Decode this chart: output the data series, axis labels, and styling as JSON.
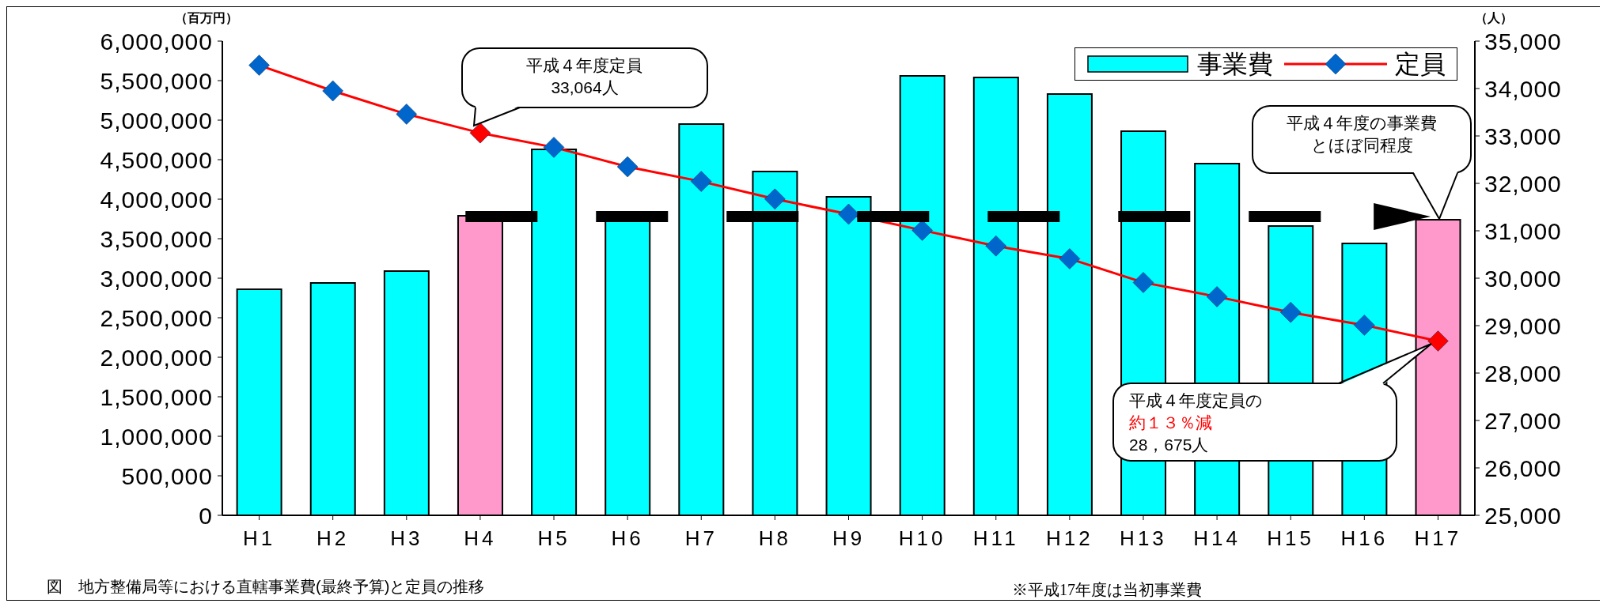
{
  "chart_data": {
    "type": "bar",
    "title": "図　地方整備局等における直轄事業費(最終予算)と定員の推移",
    "ylabel": "（百万円）",
    "y2label": "（人）",
    "categories": [
      "H1",
      "H2",
      "H3",
      "H4",
      "H5",
      "H6",
      "H7",
      "H8",
      "H9",
      "H10",
      "H11",
      "H12",
      "H13",
      "H14",
      "H15",
      "H16",
      "H17"
    ],
    "series": [
      {
        "name": "事業費",
        "color": "#00ffff",
        "colors": [
          "#00ffff",
          "#00ffff",
          "#00ffff",
          "#ff99cc",
          "#00ffff",
          "#00ffff",
          "#00ffff",
          "#00ffff",
          "#00ffff",
          "#00ffff",
          "#00ffff",
          "#00ffff",
          "#00ffff",
          "#00ffff",
          "#00ffff",
          "#00ffff",
          "#ff99cc"
        ],
        "values": [
          2860000,
          2940000,
          3090000,
          3790000,
          4630000,
          3750000,
          4950000,
          4350000,
          4030000,
          5560000,
          5540000,
          5330000,
          4860000,
          4450000,
          3660000,
          3440000,
          3740000
        ]
      },
      {
        "name": "定員",
        "type": "line",
        "axis": "y2",
        "color": "#ff0000",
        "colors": [
          "#0066cc",
          "#0066cc",
          "#0066cc",
          "#ff0000",
          "#0066cc",
          "#0066cc",
          "#0066cc",
          "#0066cc",
          "#0066cc",
          "#0066cc",
          "#0066cc",
          "#0066cc",
          "#0066cc",
          "#0066cc",
          "#0066cc",
          "#0066cc",
          "#ff0000"
        ],
        "values": [
          34490,
          33950,
          33460,
          33064,
          32760,
          32350,
          32040,
          31670,
          31350,
          31010,
          30680,
          30410,
          29910,
          29610,
          29280,
          29010,
          28675
        ]
      }
    ],
    "ylim": [
      0,
      6000000
    ],
    "yticks": [
      {
        "value": 0,
        "label": "0"
      },
      {
        "value": 500000,
        "label": "500,000"
      },
      {
        "value": 1000000,
        "label": "1,000,000"
      },
      {
        "value": 1500000,
        "label": "1,500,000"
      },
      {
        "value": 2000000,
        "label": "2,000,000"
      },
      {
        "value": 2500000,
        "label": "2,500,000"
      },
      {
        "value": 3000000,
        "label": "3,000,000"
      },
      {
        "value": 3500000,
        "label": "3,500,000"
      },
      {
        "value": 4000000,
        "label": "4,000,000"
      },
      {
        "value": 4500000,
        "label": "4,500,000"
      },
      {
        "value": 5000000,
        "label": "5,000,000"
      },
      {
        "value": 5500000,
        "label": "5,500,000"
      },
      {
        "value": 6000000,
        "label": "6,000,000"
      }
    ],
    "y2lim": [
      25000,
      35000
    ],
    "y2ticks": [
      {
        "value": 25000,
        "label": "25,000"
      },
      {
        "value": 26000,
        "label": "26,000"
      },
      {
        "value": 27000,
        "label": "27,000"
      },
      {
        "value": 28000,
        "label": "28,000"
      },
      {
        "value": 29000,
        "label": "29,000"
      },
      {
        "value": 30000,
        "label": "30,000"
      },
      {
        "value": 31000,
        "label": "31,000"
      },
      {
        "value": 32000,
        "label": "32,000"
      },
      {
        "value": 33000,
        "label": "33,000"
      },
      {
        "value": 34000,
        "label": "34,000"
      },
      {
        "value": 35000,
        "label": "35,000"
      }
    ],
    "ref_lines": [
      {
        "axis": "y",
        "value": 3780000,
        "color": "#000000",
        "line_style": "dashed"
      }
    ],
    "annotations": [
      "平成４年度定員33,064人",
      "平成４年度の事業費とほぼ同程度",
      "平成４年度定員の約１３％減28，675人",
      "※平成17年度は当初事業費"
    ],
    "marker": "diamond",
    "line_style": "solid",
    "legend": "top right"
  }
}
